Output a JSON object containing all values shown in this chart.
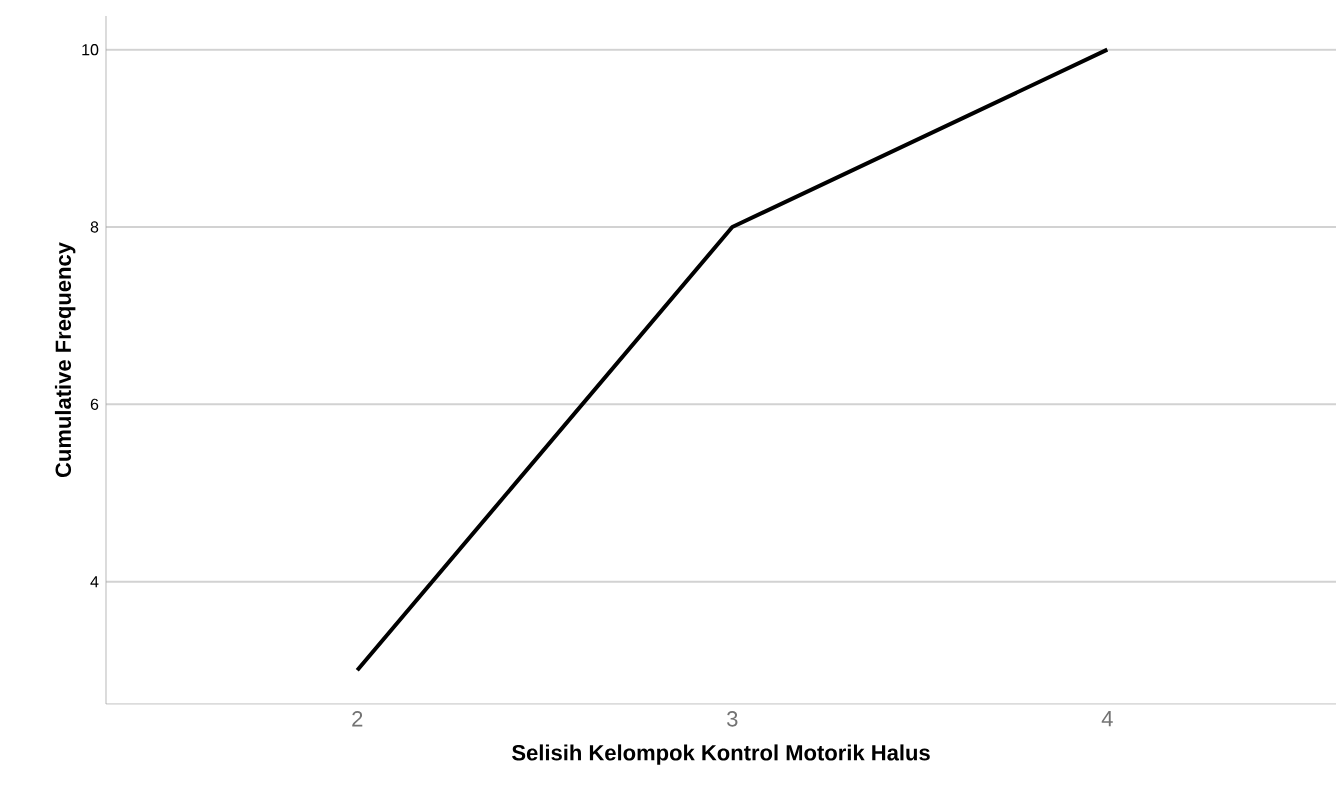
{
  "chart_data": {
    "type": "line",
    "xlabel": "Selisih Kelompok Kontrol Motorik Halus",
    "ylabel": "Cumulative Frequency",
    "x": [
      2,
      3,
      4
    ],
    "series": [
      {
        "color": "#000000",
        "values": [
          3,
          8,
          10
        ]
      }
    ],
    "xlim": [
      1.33,
      4.61
    ],
    "xticks": [
      2,
      3,
      4
    ],
    "ylim": [
      2.62,
      10.38
    ],
    "yticks": [
      4,
      6,
      8,
      10
    ],
    "grid": "y",
    "marker": "none",
    "line_style": "solid"
  }
}
